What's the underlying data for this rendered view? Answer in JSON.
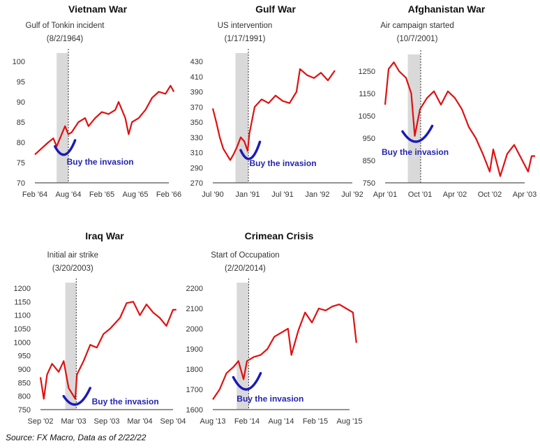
{
  "source": "Source: FX Macro, Data as of 2/22/22",
  "chart_data": [
    {
      "type": "line",
      "title": "Vietnam War",
      "annotation": [
        "Gulf of Tonkin incident",
        "(8/2/1964)"
      ],
      "xticks": [
        "Feb '64",
        "Aug '64",
        "Feb '65",
        "Aug '65",
        "Feb '66"
      ],
      "yticks": [
        70,
        75,
        80,
        85,
        90,
        95,
        100
      ],
      "ylim": [
        70,
        100
      ],
      "event_x": 1.0,
      "shade": [
        0.65,
        1.0
      ],
      "label": "Buy the invasion",
      "label_at": [
        0.95,
        74.5
      ],
      "smile": [
        [
          0.6,
          79
        ],
        [
          1.2,
          80.5
        ],
        77
      ],
      "series": [
        [
          0,
          77
        ],
        [
          0.2,
          78.5
        ],
        [
          0.4,
          80
        ],
        [
          0.55,
          81
        ],
        [
          0.65,
          79
        ],
        [
          0.8,
          82
        ],
        [
          0.9,
          84
        ],
        [
          1.0,
          82
        ],
        [
          1.1,
          82.5
        ],
        [
          1.3,
          85
        ],
        [
          1.5,
          86
        ],
        [
          1.6,
          84
        ],
        [
          1.8,
          86
        ],
        [
          2.0,
          87.5
        ],
        [
          2.2,
          87
        ],
        [
          2.4,
          88
        ],
        [
          2.5,
          90
        ],
        [
          2.7,
          86
        ],
        [
          2.8,
          82
        ],
        [
          2.9,
          85
        ],
        [
          3.1,
          86
        ],
        [
          3.3,
          88
        ],
        [
          3.5,
          91
        ],
        [
          3.7,
          92.5
        ],
        [
          3.9,
          92
        ],
        [
          4.05,
          94
        ],
        [
          4.15,
          92.5
        ]
      ]
    },
    {
      "type": "line",
      "title": "Gulf War",
      "annotation": [
        "US intervention",
        "(1/17/1991)"
      ],
      "xticks": [
        "Jul '90",
        "Jan '91",
        "Jul '91",
        "Jan '92",
        "Jul '92"
      ],
      "yticks": [
        270,
        290,
        310,
        330,
        350,
        370,
        390,
        410,
        430
      ],
      "ylim": [
        270,
        430
      ],
      "event_x": 1.02,
      "shade": [
        0.65,
        1.02
      ],
      "label": "Buy the invasion",
      "label_at": [
        1.05,
        292
      ],
      "smile": [
        [
          0.8,
          313
        ],
        [
          1.35,
          324
        ],
        302
      ],
      "series": [
        [
          0,
          368
        ],
        [
          0.1,
          350
        ],
        [
          0.2,
          330
        ],
        [
          0.3,
          315
        ],
        [
          0.5,
          300
        ],
        [
          0.6,
          308
        ],
        [
          0.7,
          318
        ],
        [
          0.8,
          330
        ],
        [
          0.9,
          325
        ],
        [
          1.0,
          312
        ],
        [
          1.05,
          335
        ],
        [
          1.2,
          370
        ],
        [
          1.4,
          380
        ],
        [
          1.6,
          375
        ],
        [
          1.8,
          385
        ],
        [
          2.0,
          378
        ],
        [
          2.2,
          375
        ],
        [
          2.4,
          390
        ],
        [
          2.5,
          420
        ],
        [
          2.7,
          412
        ],
        [
          2.9,
          408
        ],
        [
          3.1,
          415
        ],
        [
          3.3,
          405
        ],
        [
          3.5,
          418
        ]
      ]
    },
    {
      "type": "line",
      "title": "Afghanistan War",
      "annotation": [
        "Air campaign started",
        "(10/7/2001)"
      ],
      "xticks": [
        "Apr '01",
        "Oct '01",
        "Apr '02",
        "Oct '02",
        "Apr '03"
      ],
      "yticks": [
        750,
        850,
        950,
        1050,
        1150,
        1250
      ],
      "ylim": [
        750,
        1250
      ],
      "event_x": 1.02,
      "shade": [
        0.65,
        1.02
      ],
      "label": "Buy the invasion",
      "label_at": [
        -0.1,
        875
      ],
      "smile": [
        [
          0.5,
          980
        ],
        [
          1.35,
          1005
        ],
        935
      ],
      "series": [
        [
          0,
          1100
        ],
        [
          0.1,
          1260
        ],
        [
          0.25,
          1290
        ],
        [
          0.4,
          1250
        ],
        [
          0.6,
          1220
        ],
        [
          0.75,
          1150
        ],
        [
          0.85,
          960
        ],
        [
          1.0,
          1080
        ],
        [
          1.2,
          1130
        ],
        [
          1.4,
          1160
        ],
        [
          1.6,
          1100
        ],
        [
          1.8,
          1160
        ],
        [
          2.0,
          1130
        ],
        [
          2.2,
          1080
        ],
        [
          2.4,
          1000
        ],
        [
          2.6,
          950
        ],
        [
          2.8,
          880
        ],
        [
          3.0,
          800
        ],
        [
          3.1,
          900
        ],
        [
          3.3,
          780
        ],
        [
          3.5,
          880
        ],
        [
          3.7,
          920
        ],
        [
          3.9,
          860
        ],
        [
          4.1,
          800
        ],
        [
          4.2,
          870
        ],
        [
          4.3,
          870
        ]
      ]
    },
    {
      "type": "line",
      "title": "Iraq War",
      "annotation": [
        "Initial air strike",
        "(3/20/2003)"
      ],
      "xticks": [
        "Sep '02",
        "Mar '03",
        "Sep '03",
        "Mar '04",
        "Sep '04"
      ],
      "yticks": [
        750,
        800,
        850,
        900,
        950,
        1000,
        1050,
        1100,
        1150,
        1200
      ],
      "ylim": [
        750,
        1200
      ],
      "event_x": 1.08,
      "shade": [
        0.75,
        1.08
      ],
      "label": "Buy the invasion",
      "label_at": [
        1.55,
        770
      ],
      "smile": [
        [
          0.7,
          800
        ],
        [
          1.5,
          830
        ],
        770
      ],
      "series": [
        [
          0,
          870
        ],
        [
          0.1,
          790
        ],
        [
          0.2,
          880
        ],
        [
          0.35,
          920
        ],
        [
          0.55,
          890
        ],
        [
          0.7,
          930
        ],
        [
          0.85,
          830
        ],
        [
          1.05,
          790
        ],
        [
          1.1,
          880
        ],
        [
          1.3,
          930
        ],
        [
          1.5,
          990
        ],
        [
          1.7,
          980
        ],
        [
          1.9,
          1030
        ],
        [
          2.1,
          1050
        ],
        [
          2.4,
          1090
        ],
        [
          2.6,
          1145
        ],
        [
          2.8,
          1150
        ],
        [
          3.0,
          1100
        ],
        [
          3.2,
          1140
        ],
        [
          3.4,
          1110
        ],
        [
          3.6,
          1090
        ],
        [
          3.8,
          1060
        ],
        [
          4.0,
          1120
        ],
        [
          4.1,
          1120
        ]
      ]
    },
    {
      "type": "line",
      "title": "Crimean Crisis",
      "annotation": [
        "Start of Occupation",
        "(2/20/2014)"
      ],
      "xticks": [
        "Aug '13",
        "Feb '14",
        "Aug '14",
        "Feb '15",
        "Aug '15"
      ],
      "yticks": [
        1600,
        1700,
        1800,
        1900,
        2000,
        2100,
        2200
      ],
      "ylim": [
        1600,
        2200
      ],
      "event_x": 1.05,
      "shade": [
        0.7,
        1.05
      ],
      "label": "Buy the invasion",
      "label_at": [
        0.7,
        1640
      ],
      "smile": [
        [
          0.6,
          1760
        ],
        [
          1.4,
          1780
        ],
        1700
      ],
      "series": [
        [
          0,
          1650
        ],
        [
          0.2,
          1700
        ],
        [
          0.4,
          1780
        ],
        [
          0.6,
          1810
        ],
        [
          0.75,
          1840
        ],
        [
          0.9,
          1750
        ],
        [
          1.0,
          1840
        ],
        [
          1.2,
          1860
        ],
        [
          1.4,
          1870
        ],
        [
          1.6,
          1900
        ],
        [
          1.8,
          1960
        ],
        [
          2.0,
          1980
        ],
        [
          2.2,
          2000
        ],
        [
          2.3,
          1870
        ],
        [
          2.5,
          1990
        ],
        [
          2.7,
          2080
        ],
        [
          2.9,
          2030
        ],
        [
          3.1,
          2100
        ],
        [
          3.3,
          2090
        ],
        [
          3.5,
          2110
        ],
        [
          3.7,
          2120
        ],
        [
          3.9,
          2100
        ],
        [
          4.1,
          2080
        ],
        [
          4.2,
          1930
        ]
      ]
    }
  ],
  "colors": {
    "line": "#e01010",
    "smile": "#1a1ab8",
    "shade": "#d9d9d9",
    "axis": "#555555"
  }
}
